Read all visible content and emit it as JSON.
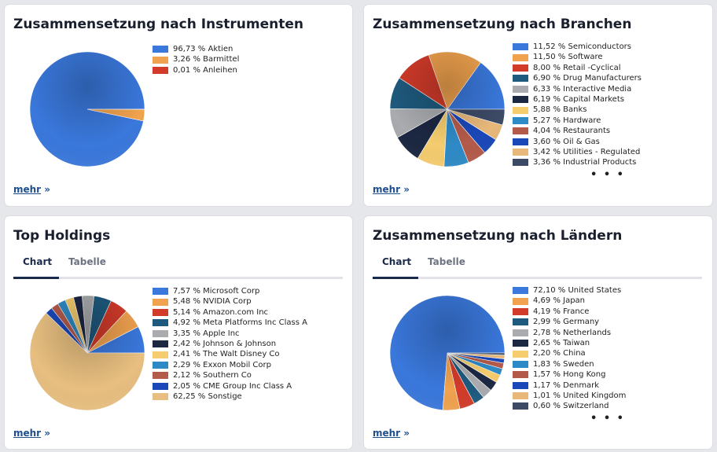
{
  "more_label": "mehr",
  "more_arrow": "»",
  "ellipsis": "• • •",
  "tabs": [
    "Chart",
    "Tabelle"
  ],
  "cards": [
    {
      "title": "Zusammensetzung nach Instrumenten",
      "chart_data": {
        "type": "pie",
        "title": "Zusammensetzung nach Instrumenten",
        "categories": [
          "Aktien",
          "Barmittel",
          "Anleihen"
        ],
        "values": [
          96.73,
          3.26,
          0.01
        ],
        "labels": [
          "96,73 % Aktien",
          "3,26 % Barmittel",
          "0,01 % Anleihen"
        ],
        "colors": [
          "#3a78dc",
          "#f0a24e",
          "#d23b2a"
        ],
        "legend_position": "right"
      }
    },
    {
      "title": "Zusammensetzung nach Branchen",
      "chart_data": {
        "type": "pie",
        "title": "Zusammensetzung nach Branchen",
        "categories": [
          "Semiconductors",
          "Software",
          "Retail -Cyclical",
          "Drug Manufacturers",
          "Interactive Media",
          "Capital Markets",
          "Banks",
          "Hardware",
          "Restaurants",
          "Oil & Gas",
          "Utilities - Regulated",
          "Industrial Products"
        ],
        "values": [
          11.52,
          11.5,
          8.0,
          6.9,
          6.33,
          6.19,
          5.88,
          5.27,
          4.04,
          3.6,
          3.42,
          3.36
        ],
        "labels": [
          "11,52 % Semiconductors",
          "11,50 % Software",
          "8,00 % Retail -Cyclical",
          "6,90 % Drug Manufacturers",
          "6,33 % Interactive Media",
          "6,19 % Capital Markets",
          "5,88 % Banks",
          "5,27 % Hardware",
          "4,04 % Restaurants",
          "3,60 % Oil & Gas",
          "3,42 % Utilities - Regulated",
          "3,36 % Industrial Products"
        ],
        "colors": [
          "#3a78dc",
          "#f0a24e",
          "#d23b2a",
          "#1e5a7e",
          "#a9abae",
          "#1c2742",
          "#f5cc6e",
          "#2e8ac6",
          "#b45a4a",
          "#1a48b8",
          "#e8b87a",
          "#3c4a66"
        ],
        "legend_position": "right",
        "truncated": true
      }
    },
    {
      "title": "Top Holdings",
      "chart_data": {
        "type": "pie",
        "title": "Top Holdings",
        "categories": [
          "Microsoft Corp",
          "NVIDIA Corp",
          "Amazon.com Inc",
          "Meta Platforms Inc Class A",
          "Apple Inc",
          "Johnson & Johnson",
          "The Walt Disney Co",
          "Exxon Mobil Corp",
          "Southern Co",
          "CME Group Inc Class A",
          "Sonstige"
        ],
        "values": [
          7.57,
          5.48,
          5.14,
          4.92,
          3.35,
          2.42,
          2.41,
          2.29,
          2.12,
          2.05,
          62.25
        ],
        "labels": [
          "7,57 % Microsoft Corp",
          "5,48 % NVIDIA Corp",
          "5,14 % Amazon.com Inc",
          "4,92 % Meta Platforms Inc Class A",
          "3,35 % Apple Inc",
          "2,42 % Johnson & Johnson",
          "2,41 % The Walt Disney Co",
          "2,29 % Exxon Mobil Corp",
          "2,12 % Southern Co",
          "2,05 % CME Group Inc Class A",
          "62,25 % Sonstige"
        ],
        "colors": [
          "#3a78dc",
          "#f0a24e",
          "#d23b2a",
          "#1e5a7e",
          "#a9abae",
          "#1c2742",
          "#f5cc6e",
          "#2e8ac6",
          "#b45a4a",
          "#1a48b8",
          "#e8bf80"
        ],
        "legend_position": "right"
      }
    },
    {
      "title": "Zusammensetzung nach Ländern",
      "chart_data": {
        "type": "pie",
        "title": "Zusammensetzung nach Ländern",
        "categories": [
          "United States",
          "Japan",
          "France",
          "Germany",
          "Netherlands",
          "Taiwan",
          "China",
          "Sweden",
          "Hong Kong",
          "Denmark",
          "United Kingdom",
          "Switzerland"
        ],
        "values": [
          72.1,
          4.69,
          4.19,
          2.99,
          2.78,
          2.65,
          2.2,
          1.83,
          1.57,
          1.17,
          1.01,
          0.6
        ],
        "labels": [
          "72,10 % United States",
          "4,69 % Japan",
          "4,19 % France",
          "2,99 % Germany",
          "2,78 % Netherlands",
          "2,65 % Taiwan",
          "2,20 % China",
          "1,83 % Sweden",
          "1,57 % Hong Kong",
          "1,17 % Denmark",
          "1,01 % United Kingdom",
          "0,60 % Switzerland"
        ],
        "colors": [
          "#3a78dc",
          "#f0a24e",
          "#d23b2a",
          "#1e5a7e",
          "#a9abae",
          "#1c2742",
          "#f5cc6e",
          "#2e8ac6",
          "#b45a4a",
          "#1a48b8",
          "#e8b87a",
          "#3c4a66"
        ],
        "legend_position": "right",
        "truncated": true
      }
    }
  ]
}
